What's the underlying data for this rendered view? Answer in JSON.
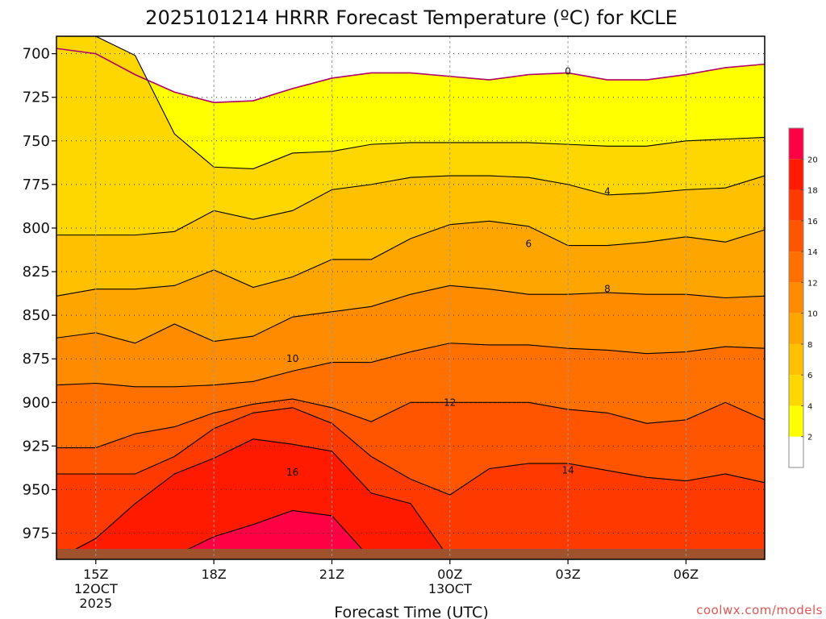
{
  "chart_data": {
    "type": "heatmap",
    "title": "2025101214 HRRR Forecast Temperature (ºC) for KCLE",
    "xlabel": "Forecast Time (UTC)",
    "ylabel": "",
    "credit": "coolwx.com/models",
    "y_axis": {
      "units": "hPa",
      "range": [
        690,
        990
      ],
      "ticks": [
        700,
        725,
        750,
        775,
        800,
        825,
        850,
        875,
        900,
        925,
        950,
        975
      ],
      "tick_labels": [
        "700",
        "725",
        "750",
        "775",
        "800",
        "825",
        "850",
        "875",
        "900",
        "925",
        "950",
        "975"
      ]
    },
    "x_axis": {
      "units": "hours after 2025-10-12 14Z",
      "range": [
        0,
        18
      ],
      "ticks": [
        1,
        4,
        7,
        10,
        13,
        16
      ],
      "tick_labels": [
        "15Z",
        "18Z",
        "21Z",
        "00Z",
        "03Z",
        "06Z"
      ],
      "date_labels": [
        {
          "at": 1,
          "lines": [
            "12OCT",
            "2025"
          ]
        },
        {
          "at": 10,
          "lines": [
            "13OCT"
          ]
        }
      ]
    },
    "colorbar": {
      "levels": [
        2,
        4,
        6,
        8,
        10,
        12,
        14,
        16,
        18,
        20
      ],
      "labels": [
        "2",
        "4",
        "6",
        "8",
        "10",
        "12",
        "14",
        "16",
        "18",
        "20"
      ],
      "colors": [
        "#ffffff",
        "#ffff00",
        "#ffd700",
        "#ffc000",
        "#ffa500",
        "#ff8c00",
        "#ff7000",
        "#ff5500",
        "#ff3a00",
        "#ff1a00",
        "#ff0044"
      ]
    },
    "x": [
      0,
      1,
      2,
      3,
      4,
      5,
      6,
      7,
      8,
      9,
      10,
      11,
      12,
      13,
      14,
      15,
      16,
      17,
      18
    ],
    "contours": [
      {
        "level": 0,
        "pressure": [
          697,
          700,
          712,
          722,
          728,
          727,
          720,
          714,
          711,
          711,
          713,
          715,
          712,
          711,
          715,
          715,
          712,
          708,
          706
        ],
        "label": "0",
        "label_at": [
          13,
          710
        ]
      },
      {
        "level": 2,
        "pressure": [
          690,
          690,
          701,
          746,
          765,
          766,
          757,
          756,
          752,
          751,
          751,
          751,
          751,
          752,
          753,
          753,
          750,
          749,
          748
        ],
        "label": "",
        "label_at": null
      },
      {
        "level": 4,
        "pressure": [
          804,
          804,
          804,
          802,
          790,
          795,
          790,
          778,
          775,
          771,
          770,
          770,
          771,
          775,
          781,
          780,
          778,
          777,
          770
        ],
        "label": "4",
        "label_at": [
          14,
          779
        ]
      },
      {
        "level": 6,
        "pressure": [
          839,
          835,
          835,
          833,
          824,
          834,
          828,
          818,
          818,
          806,
          798,
          796,
          799,
          810,
          810,
          808,
          805,
          808,
          801
        ],
        "label": "6",
        "label_at": [
          12,
          809
        ]
      },
      {
        "level": 8,
        "pressure": [
          863,
          860,
          866,
          855,
          865,
          862,
          851,
          848,
          845,
          838,
          833,
          835,
          838,
          838,
          837,
          838,
          838,
          840,
          839
        ],
        "label": "8",
        "label_at": [
          14,
          835
        ]
      },
      {
        "level": 10,
        "pressure": [
          890,
          889,
          891,
          891,
          890,
          888,
          882,
          877,
          877,
          871,
          866,
          867,
          867,
          869,
          870,
          872,
          871,
          868,
          869
        ],
        "label": "10",
        "label_at": [
          6,
          875
        ]
      },
      {
        "level": 12,
        "pressure": [
          926,
          926,
          918,
          914,
          906,
          901,
          898,
          903,
          911,
          900,
          900,
          900,
          900,
          904,
          906,
          912,
          910,
          900,
          910
        ],
        "label": "12",
        "label_at": [
          10,
          900
        ]
      },
      {
        "level": 14,
        "pressure": [
          941,
          941,
          941,
          931,
          915,
          906,
          903,
          912,
          931,
          944,
          953,
          938,
          935,
          935,
          939,
          943,
          945,
          941,
          946
        ],
        "label": "14",
        "label_at": [
          13,
          939
        ]
      },
      {
        "level": 16,
        "pressure": [
          990,
          978,
          958,
          941,
          932,
          921,
          924,
          928,
          952,
          958,
          990,
          990,
          990,
          990,
          990,
          990,
          990,
          990,
          990
        ],
        "label": "16",
        "label_at": [
          6,
          940
        ]
      },
      {
        "level": 18,
        "pressure": [
          990,
          990,
          990,
          988,
          977,
          970,
          962,
          965,
          990,
          990,
          990,
          990,
          990,
          990,
          990,
          990,
          990,
          990,
          990
        ],
        "label": "",
        "label_at": null
      }
    ],
    "surface_pressure": 984,
    "grid": true
  }
}
